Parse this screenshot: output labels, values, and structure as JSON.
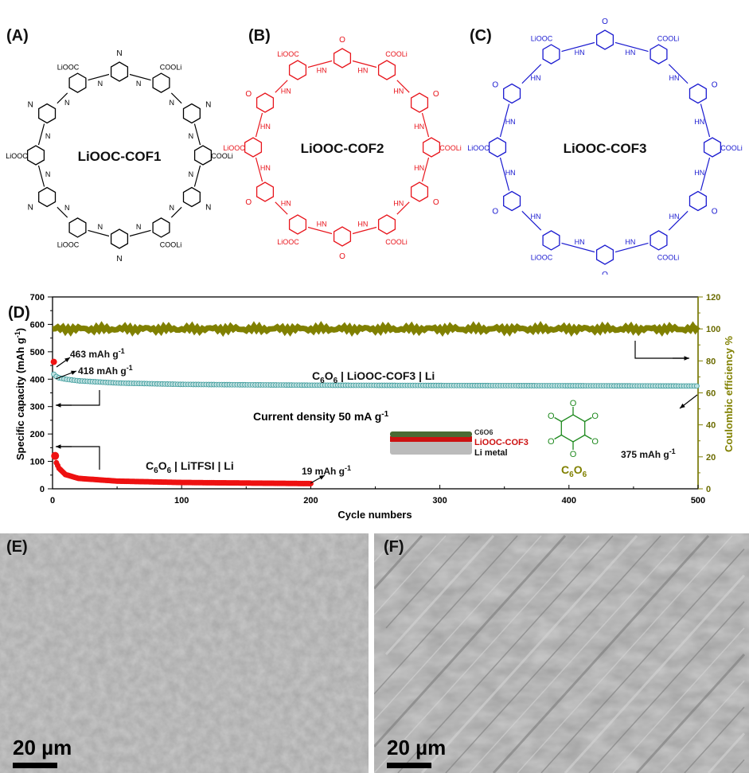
{
  "panels": {
    "a": "(A)",
    "b": "(B)",
    "c": "(C)",
    "d": "(D)",
    "e": "(E)",
    "f": "(F)"
  },
  "structures": [
    {
      "name": "LiOOC-COF1",
      "color": "#000000",
      "link": "N",
      "sub": "COOLi",
      "sub2": "LiOOC"
    },
    {
      "name": "LiOOC-COF2",
      "color": "#e8141b",
      "link": "HN",
      "sub": "COOLi",
      "sub2": "LiOOC",
      "ketone": "O"
    },
    {
      "name": "LiOOC-COF3",
      "color": "#1a1ad0",
      "link": "HN",
      "sub": "COOLi",
      "sub2": "LiOOC",
      "ketone": "O"
    }
  ],
  "chart_data": {
    "type": "scatter",
    "xlabel": "Cycle numbers",
    "ylabel": "Specific capacity (mAh g-1)",
    "ylabel_parts": [
      "Specific capacity (mAh g",
      "-1",
      ")"
    ],
    "y2label": "Coulombic efficiency %",
    "xlim": [
      0,
      500
    ],
    "ylim": [
      0,
      700
    ],
    "y2lim": [
      0,
      120
    ],
    "xticks": [
      "0",
      "100",
      "200",
      "300",
      "400",
      "500"
    ],
    "yticks": [
      "0",
      "100",
      "200",
      "300",
      "400",
      "500",
      "600",
      "700"
    ],
    "y2ticks": [
      "0",
      "20",
      "40",
      "60",
      "80",
      "100",
      "120"
    ],
    "series": [
      {
        "name": "C6O6 | LiOOC-COF3 | Li",
        "axis": "left",
        "color": "#3a9a9a",
        "x": [
          1,
          2,
          5,
          10,
          20,
          50,
          100,
          200,
          300,
          400,
          500
        ],
        "y": [
          418,
          412,
          405,
          400,
          394,
          386,
          381,
          378,
          377,
          376,
          375
        ]
      },
      {
        "name": "C6O6 | LiTFSI | Li",
        "axis": "left",
        "color": "#ee1111",
        "x": [
          1,
          2,
          3,
          5,
          10,
          20,
          50,
          100,
          150,
          200
        ],
        "y": [
          463,
          120,
          95,
          75,
          52,
          38,
          28,
          23,
          21,
          19
        ]
      },
      {
        "name": "Coulombic efficiency",
        "axis": "right",
        "color": "#808000",
        "x": [
          0,
          500
        ],
        "y": [
          100,
          100
        ]
      }
    ],
    "annotations": {
      "a463": "463 mAh g",
      "a418": "418 mAh g",
      "a19": "19 mAh g",
      "a375": "375 mAh g",
      "sup": "-1",
      "cof3_label": [
        "C",
        "6",
        "O",
        "6",
        " | LiOOC-COF3 | Li"
      ],
      "tfsi_label": [
        "C",
        "6",
        "O",
        "6",
        " | LiTFSI | Li"
      ],
      "current": "Current density 50 mA g",
      "layers": [
        "C6O6",
        "LiOOC-COF3",
        "Li metal"
      ],
      "layer_colors": [
        "#4a6a34",
        "#cc1111",
        "#bbbbbb"
      ],
      "molecule": [
        "C",
        "6",
        "O",
        "6"
      ],
      "molecule_O": "O",
      "molecule_color": "#1f8a1f"
    }
  },
  "sem": [
    {
      "scale": "20 µm"
    },
    {
      "scale": "20 µm"
    }
  ]
}
